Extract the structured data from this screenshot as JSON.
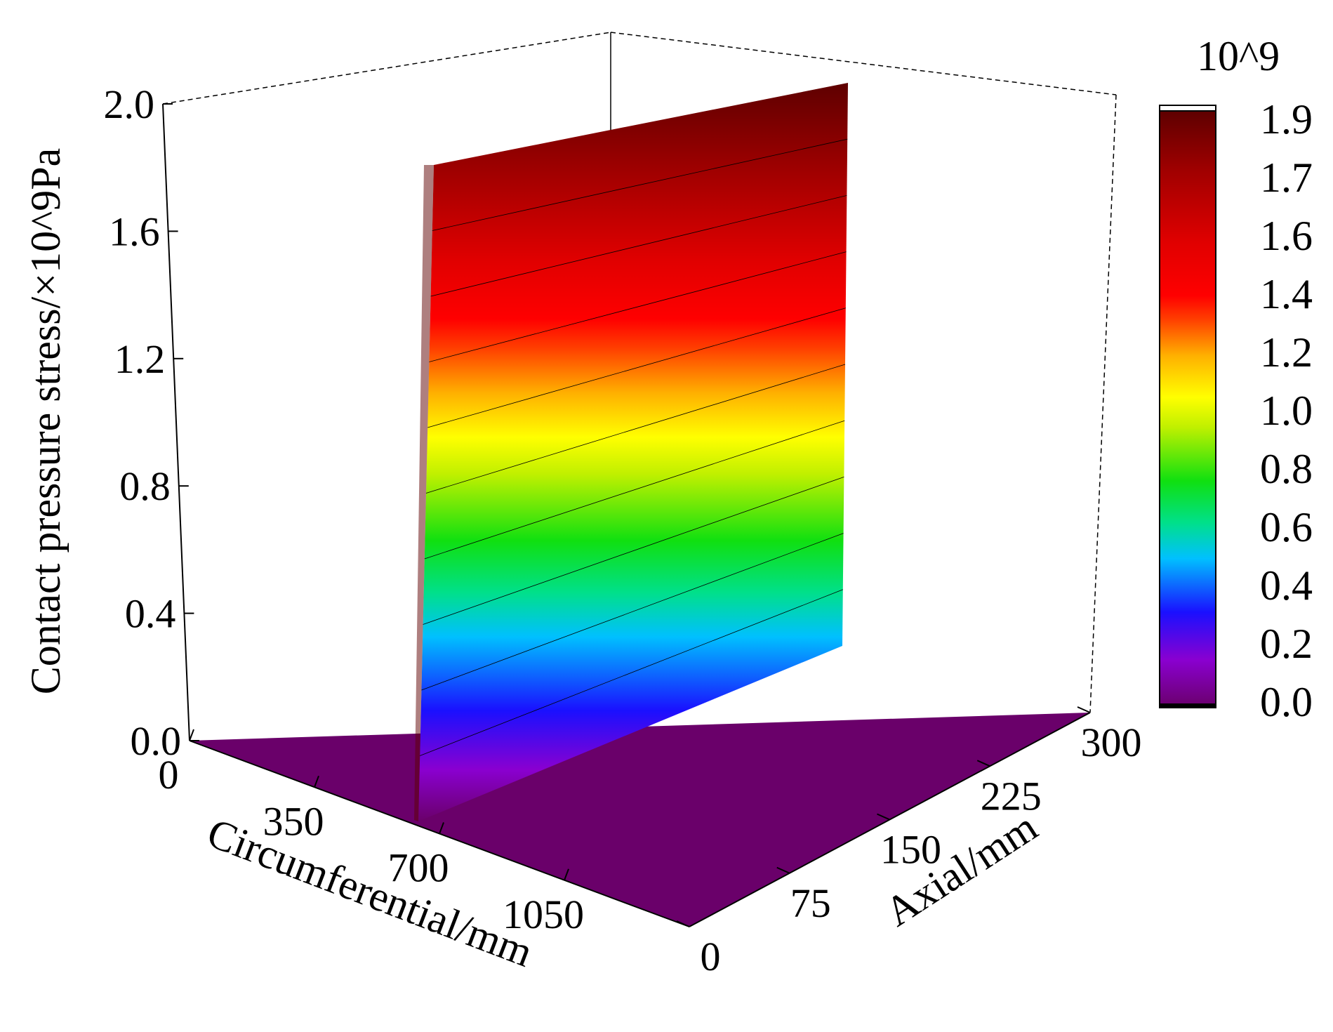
{
  "chart_data": {
    "type": "surface3d",
    "title": "",
    "zlabel": "Contact pressure stress/×10^9Pa",
    "xlabel": "Circumferential/mm",
    "ylabel": "Axial/mm",
    "x_ticks": [
      "0",
      "350",
      "700",
      "1050"
    ],
    "y_ticks": [
      "0",
      "75",
      "150",
      "225",
      "300"
    ],
    "z_ticks": [
      "0.0",
      "0.4",
      "0.8",
      "1.2",
      "1.6",
      "2.0"
    ],
    "xlim": [
      0,
      1400
    ],
    "ylim": [
      0,
      300
    ],
    "zlim": [
      0,
      2.0
    ],
    "surface": {
      "description_points": [
        {
          "circumferential": 0,
          "axial": 0,
          "pressure": 0.0
        },
        {
          "circumferential": 645,
          "axial": 0,
          "pressure": 0.0
        },
        {
          "circumferential": 660,
          "axial": 0,
          "pressure": 1.9
        },
        {
          "circumferential": 660,
          "axial": 300,
          "pressure": 1.9
        },
        {
          "circumferential": 675,
          "axial": 300,
          "pressure": 0.0
        },
        {
          "circumferential": 1400,
          "axial": 300,
          "pressure": 0.0
        }
      ],
      "peak_pressure": 1.9,
      "contour_levels": [
        0.19,
        0.38,
        0.57,
        0.76,
        0.95,
        1.14,
        1.33,
        1.52,
        1.71
      ]
    },
    "colorbar": {
      "exponent_label": "10^9",
      "ticks": [
        "1.9",
        "1.7",
        "1.6",
        "1.4",
        "1.2",
        "1.0",
        "0.8",
        "0.6",
        "0.4",
        "0.2",
        "0.0"
      ],
      "range": [
        0.0,
        1.9
      ],
      "colors": [
        "#6a006a",
        "#8a00d0",
        "#1a10ff",
        "#00c0ff",
        "#00e08a",
        "#10e010",
        "#c0f000",
        "#ffff00",
        "#ffb000",
        "#ff4000",
        "#ff0000",
        "#e00000",
        "#a00000",
        "#5e0000"
      ]
    },
    "grid": false
  }
}
